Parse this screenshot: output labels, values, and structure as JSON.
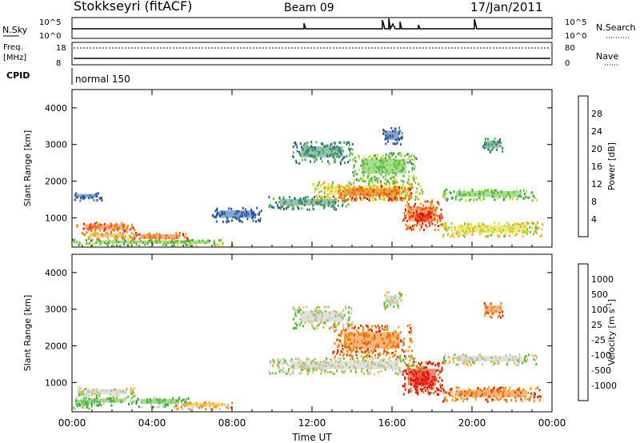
{
  "header": {
    "station": "Stokkseyri (fitACF)",
    "beam": "Beam 09",
    "date": "17/Jan/2011"
  },
  "strips": {
    "nsky_label": "N.Sky",
    "nsky_ticks": [
      "10^5",
      "10^0"
    ],
    "nsearch_label": "N.Search",
    "nsearch_ticks": [
      "10^5",
      "10^0"
    ],
    "freq_label": "Freq.",
    "freq_unit": "[MHz]",
    "freq_ticks": [
      "18",
      "8"
    ],
    "nave_label": "Nave",
    "nave_ticks": [
      "80",
      "0"
    ],
    "cpid_label": "CPID",
    "cpid_value": "normal 150"
  },
  "colors": {
    "power": [
      "#1f3fd9",
      "#2a55a8",
      "#3d8f6a",
      "#5cc43c",
      "#d9d92a",
      "#f0a020",
      "#f06a10",
      "#e01010"
    ],
    "velocity": [
      "#1c2fb8",
      "#2f7fa8",
      "#2e8b57",
      "#4fc02f",
      "#c8c8c0",
      "#f0b020",
      "#f07a10",
      "#e02000",
      "#e81010"
    ]
  },
  "chart_data": [
    {
      "type": "heatmap",
      "quantity": "Power",
      "ylabel": "Slant Range [km]",
      "y_ticks": [
        1000,
        2000,
        3000,
        4000
      ],
      "ylim": [
        200,
        4500
      ],
      "x_ticks": [
        "00:00",
        "04:00",
        "08:00",
        "12:00",
        "16:00",
        "20:00",
        "00:00"
      ],
      "xlim_hours": [
        0,
        24
      ],
      "colorbar_label": "Power [dB]",
      "colorbar_ticks": [
        "4",
        "8",
        "12",
        "16",
        "20",
        "24",
        "28"
      ],
      "regions": [
        {
          "t0": 0.2,
          "t1": 3.1,
          "r0": 600,
          "r1": 900,
          "level": 6
        },
        {
          "t0": 0.5,
          "t1": 3.0,
          "r0": 420,
          "r1": 620,
          "level": 5
        },
        {
          "t0": 3.0,
          "t1": 5.8,
          "r0": 350,
          "r1": 620,
          "level": 6
        },
        {
          "t0": 0.0,
          "t1": 8.0,
          "r0": 250,
          "r1": 430,
          "level": 3
        },
        {
          "t0": 0.0,
          "t1": 1.5,
          "r0": 1500,
          "r1": 1700,
          "level": 1
        },
        {
          "t0": 7.0,
          "t1": 9.5,
          "r0": 900,
          "r1": 1300,
          "level": 1
        },
        {
          "t0": 9.8,
          "t1": 13.8,
          "r0": 1250,
          "r1": 1600,
          "level": 2
        },
        {
          "t0": 12.0,
          "t1": 17.5,
          "r0": 1500,
          "r1": 2000,
          "level": 4
        },
        {
          "t0": 13.0,
          "t1": 17.0,
          "r0": 1500,
          "r1": 1900,
          "level": 6
        },
        {
          "t0": 14.0,
          "t1": 17.2,
          "r0": 2000,
          "r1": 2800,
          "level": 3
        },
        {
          "t0": 16.5,
          "t1": 18.5,
          "r0": 700,
          "r1": 1500,
          "level": 6
        },
        {
          "t0": 17.0,
          "t1": 18.0,
          "r0": 800,
          "r1": 1200,
          "level": 7
        },
        {
          "t0": 11.0,
          "t1": 14.0,
          "r0": 2500,
          "r1": 3100,
          "level": 2
        },
        {
          "t0": 18.5,
          "t1": 23.2,
          "r0": 1500,
          "r1": 1800,
          "level": 3
        },
        {
          "t0": 18.5,
          "t1": 23.5,
          "r0": 500,
          "r1": 900,
          "level": 4
        },
        {
          "t0": 20.5,
          "t1": 21.5,
          "r0": 2800,
          "r1": 3200,
          "level": 2
        },
        {
          "t0": 15.5,
          "t1": 16.5,
          "r0": 3000,
          "r1": 3500,
          "level": 1
        }
      ]
    },
    {
      "type": "heatmap",
      "quantity": "Velocity",
      "ylabel": "Slant Range [km]",
      "y_ticks": [
        1000,
        2000,
        3000,
        4000
      ],
      "ylim": [
        200,
        4500
      ],
      "x_ticks": [
        "00:00",
        "04:00",
        "08:00",
        "12:00",
        "16:00",
        "20:00",
        "00:00"
      ],
      "xaxis_title": "Time UT",
      "xlim_hours": [
        0,
        24
      ],
      "colorbar_label": "Velocity",
      "colorbar_units": "[m s",
      "colorbar_ticks": [
        "1000",
        "500",
        "100",
        "25",
        "-25",
        "-100",
        "-500",
        "-1000"
      ],
      "regions": [
        {
          "t0": 0.2,
          "t1": 3.1,
          "r0": 600,
          "r1": 900,
          "level": 4
        },
        {
          "t0": 0.5,
          "t1": 3.0,
          "r0": 400,
          "r1": 620,
          "level": 3
        },
        {
          "t0": 3.0,
          "t1": 5.8,
          "r0": 350,
          "r1": 620,
          "level": 3
        },
        {
          "t0": 5.0,
          "t1": 8.0,
          "r0": 300,
          "r1": 500,
          "level": 5
        },
        {
          "t0": 9.8,
          "t1": 17.5,
          "r0": 1250,
          "r1": 1700,
          "level": 4
        },
        {
          "t0": 13.0,
          "t1": 17.0,
          "r0": 1700,
          "r1": 2600,
          "level": 6
        },
        {
          "t0": 16.5,
          "t1": 18.5,
          "r0": 700,
          "r1": 1600,
          "level": 7
        },
        {
          "t0": 17.0,
          "t1": 18.0,
          "r0": 800,
          "r1": 1300,
          "level": 8
        },
        {
          "t0": 11.0,
          "t1": 14.0,
          "r0": 2500,
          "r1": 3100,
          "level": 4
        },
        {
          "t0": 18.5,
          "t1": 23.2,
          "r0": 1500,
          "r1": 1800,
          "level": 4
        },
        {
          "t0": 18.5,
          "t1": 23.5,
          "r0": 500,
          "r1": 900,
          "level": 6
        },
        {
          "t0": 20.5,
          "t1": 21.5,
          "r0": 2800,
          "r1": 3200,
          "level": 6
        },
        {
          "t0": 15.5,
          "t1": 16.5,
          "r0": 3000,
          "r1": 3500,
          "level": 4
        },
        {
          "t0": 0.0,
          "t1": 1.0,
          "r0": 300,
          "r1": 600,
          "level": 3
        }
      ]
    }
  ]
}
